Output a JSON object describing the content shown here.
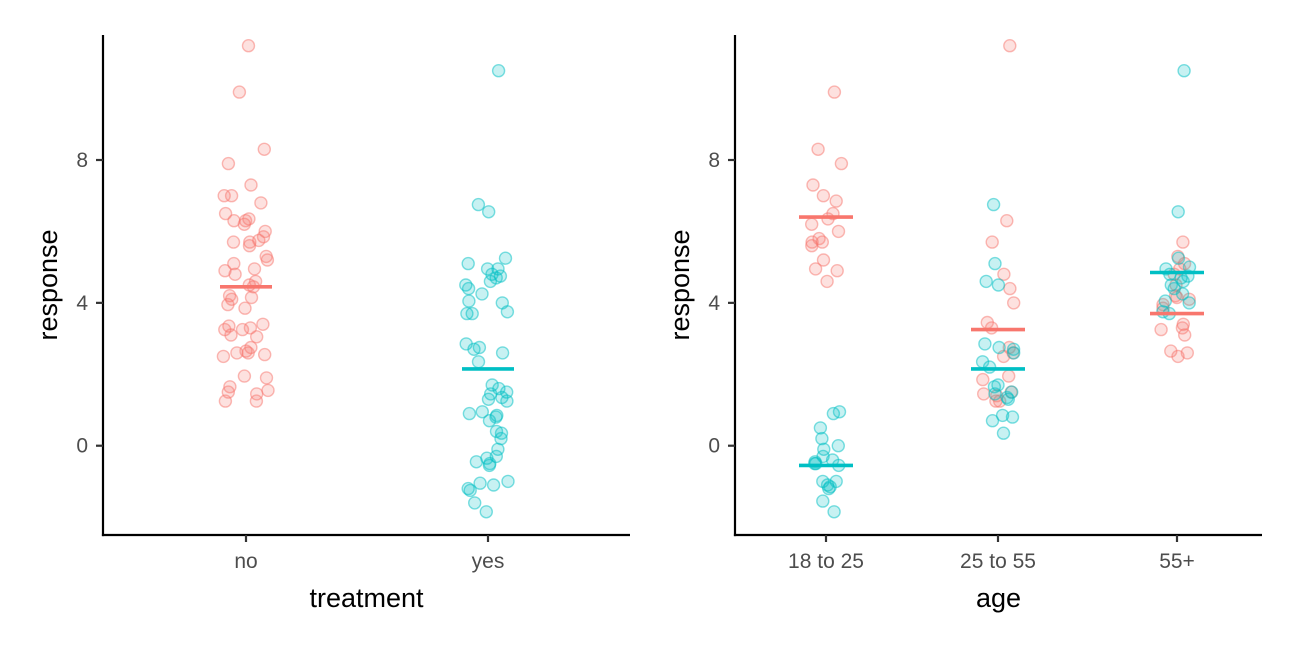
{
  "chart_data": [
    {
      "type": "scatter",
      "subtype": "jitter-strip",
      "xlabel": "treatment",
      "ylabel": "response",
      "categories": [
        "no",
        "yes"
      ],
      "ylim": [
        -2.5,
        11.5
      ],
      "yticks": [
        0,
        4,
        8
      ],
      "grid": false,
      "legend": "none",
      "series": [
        {
          "color": "#F8766D",
          "points": [
            {
              "x": "no",
              "y": 11.2
            },
            {
              "x": "no",
              "y": 9.9
            },
            {
              "x": "no",
              "y": 8.3
            },
            {
              "x": "no",
              "y": 7.9
            },
            {
              "x": "no",
              "y": 7.3
            },
            {
              "x": "no",
              "y": 7.0
            },
            {
              "x": "no",
              "y": 7.0
            },
            {
              "x": "no",
              "y": 6.8
            },
            {
              "x": "no",
              "y": 6.5
            },
            {
              "x": "no",
              "y": 6.35
            },
            {
              "x": "no",
              "y": 6.3
            },
            {
              "x": "no",
              "y": 6.3
            },
            {
              "x": "no",
              "y": 6.2
            },
            {
              "x": "no",
              "y": 6.0
            },
            {
              "x": "no",
              "y": 5.85
            },
            {
              "x": "no",
              "y": 5.75
            },
            {
              "x": "no",
              "y": 5.7
            },
            {
              "x": "no",
              "y": 5.7
            },
            {
              "x": "no",
              "y": 5.6
            },
            {
              "x": "no",
              "y": 5.3
            },
            {
              "x": "no",
              "y": 5.2
            },
            {
              "x": "no",
              "y": 5.1
            },
            {
              "x": "no",
              "y": 4.95
            },
            {
              "x": "no",
              "y": 4.9
            },
            {
              "x": "no",
              "y": 4.8
            },
            {
              "x": "no",
              "y": 4.6
            },
            {
              "x": "no",
              "y": 4.5
            },
            {
              "x": "no",
              "y": 4.45
            },
            {
              "x": "no",
              "y": 4.2
            },
            {
              "x": "no",
              "y": 4.15
            },
            {
              "x": "no",
              "y": 4.1
            },
            {
              "x": "no",
              "y": 3.95
            },
            {
              "x": "no",
              "y": 3.85
            },
            {
              "x": "no",
              "y": 3.4
            },
            {
              "x": "no",
              "y": 3.35
            },
            {
              "x": "no",
              "y": 3.3
            },
            {
              "x": "no",
              "y": 3.25
            },
            {
              "x": "no",
              "y": 3.25
            },
            {
              "x": "no",
              "y": 3.1
            },
            {
              "x": "no",
              "y": 3.05
            },
            {
              "x": "no",
              "y": 2.75
            },
            {
              "x": "no",
              "y": 2.65
            },
            {
              "x": "no",
              "y": 2.6
            },
            {
              "x": "no",
              "y": 2.6
            },
            {
              "x": "no",
              "y": 2.55
            },
            {
              "x": "no",
              "y": 2.5
            },
            {
              "x": "no",
              "y": 1.95
            },
            {
              "x": "no",
              "y": 1.9
            },
            {
              "x": "no",
              "y": 1.65
            },
            {
              "x": "no",
              "y": 1.55
            },
            {
              "x": "no",
              "y": 1.5
            },
            {
              "x": "no",
              "y": 1.45
            },
            {
              "x": "no",
              "y": 1.25
            },
            {
              "x": "no",
              "y": 1.25
            }
          ]
        },
        {
          "color": "#00BFC4",
          "points": [
            {
              "x": "yes",
              "y": 10.5
            },
            {
              "x": "yes",
              "y": 6.75
            },
            {
              "x": "yes",
              "y": 6.55
            },
            {
              "x": "yes",
              "y": 5.25
            },
            {
              "x": "yes",
              "y": 5.1
            },
            {
              "x": "yes",
              "y": 4.95
            },
            {
              "x": "yes",
              "y": 4.95
            },
            {
              "x": "yes",
              "y": 4.8
            },
            {
              "x": "yes",
              "y": 4.75
            },
            {
              "x": "yes",
              "y": 4.7
            },
            {
              "x": "yes",
              "y": 4.6
            },
            {
              "x": "yes",
              "y": 4.5
            },
            {
              "x": "yes",
              "y": 4.4
            },
            {
              "x": "yes",
              "y": 4.25
            },
            {
              "x": "yes",
              "y": 4.05
            },
            {
              "x": "yes",
              "y": 4.0
            },
            {
              "x": "yes",
              "y": 3.75
            },
            {
              "x": "yes",
              "y": 3.7
            },
            {
              "x": "yes",
              "y": 3.7
            },
            {
              "x": "yes",
              "y": 2.85
            },
            {
              "x": "yes",
              "y": 2.75
            },
            {
              "x": "yes",
              "y": 2.7
            },
            {
              "x": "yes",
              "y": 2.6
            },
            {
              "x": "yes",
              "y": 2.35
            },
            {
              "x": "yes",
              "y": 1.7
            },
            {
              "x": "yes",
              "y": 1.6
            },
            {
              "x": "yes",
              "y": 1.5
            },
            {
              "x": "yes",
              "y": 1.45
            },
            {
              "x": "yes",
              "y": 1.35
            },
            {
              "x": "yes",
              "y": 1.3
            },
            {
              "x": "yes",
              "y": 1.25
            },
            {
              "x": "yes",
              "y": 0.95
            },
            {
              "x": "yes",
              "y": 0.9
            },
            {
              "x": "yes",
              "y": 0.85
            },
            {
              "x": "yes",
              "y": 0.8
            },
            {
              "x": "yes",
              "y": 0.7
            },
            {
              "x": "yes",
              "y": 0.4
            },
            {
              "x": "yes",
              "y": 0.35
            },
            {
              "x": "yes",
              "y": 0.2
            },
            {
              "x": "yes",
              "y": -0.1
            },
            {
              "x": "yes",
              "y": -0.3
            },
            {
              "x": "yes",
              "y": -0.35
            },
            {
              "x": "yes",
              "y": -0.45
            },
            {
              "x": "yes",
              "y": -0.5
            },
            {
              "x": "yes",
              "y": -0.55
            },
            {
              "x": "yes",
              "y": -1.0
            },
            {
              "x": "yes",
              "y": -1.05
            },
            {
              "x": "yes",
              "y": -1.1
            },
            {
              "x": "yes",
              "y": -1.2
            },
            {
              "x": "yes",
              "y": -1.25
            },
            {
              "x": "yes",
              "y": -1.6
            },
            {
              "x": "yes",
              "y": -1.85
            }
          ]
        }
      ],
      "means": [
        {
          "x": "no",
          "y": 4.45,
          "color": "#F8766D"
        },
        {
          "x": "yes",
          "y": 2.15,
          "color": "#00BFC4"
        }
      ]
    },
    {
      "type": "scatter",
      "subtype": "jitter-strip",
      "xlabel": "age",
      "ylabel": "response",
      "categories": [
        "18 to 25",
        "25 to 55",
        "55+"
      ],
      "ylim": [
        -2.5,
        11.5
      ],
      "yticks": [
        0,
        4,
        8
      ],
      "grid": false,
      "legend": "none",
      "series": [
        {
          "color": "#F8766D",
          "points": [
            {
              "x": "18 to 25",
              "y": 9.9
            },
            {
              "x": "18 to 25",
              "y": 8.3
            },
            {
              "x": "18 to 25",
              "y": 7.9
            },
            {
              "x": "18 to 25",
              "y": 7.3
            },
            {
              "x": "18 to 25",
              "y": 7.0
            },
            {
              "x": "18 to 25",
              "y": 6.85
            },
            {
              "x": "18 to 25",
              "y": 6.5
            },
            {
              "x": "18 to 25",
              "y": 6.35
            },
            {
              "x": "18 to 25",
              "y": 6.2
            },
            {
              "x": "18 to 25",
              "y": 6.0
            },
            {
              "x": "18 to 25",
              "y": 5.8
            },
            {
              "x": "18 to 25",
              "y": 5.7
            },
            {
              "x": "18 to 25",
              "y": 5.7
            },
            {
              "x": "18 to 25",
              "y": 5.6
            },
            {
              "x": "18 to 25",
              "y": 5.2
            },
            {
              "x": "18 to 25",
              "y": 4.95
            },
            {
              "x": "18 to 25",
              "y": 4.9
            },
            {
              "x": "18 to 25",
              "y": 4.6
            },
            {
              "x": "25 to 55",
              "y": 11.2
            },
            {
              "x": "25 to 55",
              "y": 6.3
            },
            {
              "x": "25 to 55",
              "y": 5.7
            },
            {
              "x": "25 to 55",
              "y": 4.8
            },
            {
              "x": "25 to 55",
              "y": 4.4
            },
            {
              "x": "25 to 55",
              "y": 4.0
            },
            {
              "x": "25 to 55",
              "y": 3.45
            },
            {
              "x": "25 to 55",
              "y": 3.3
            },
            {
              "x": "25 to 55",
              "y": 2.75
            },
            {
              "x": "25 to 55",
              "y": 2.6
            },
            {
              "x": "25 to 55",
              "y": 2.5
            },
            {
              "x": "25 to 55",
              "y": 1.95
            },
            {
              "x": "25 to 55",
              "y": 1.85
            },
            {
              "x": "25 to 55",
              "y": 1.5
            },
            {
              "x": "25 to 55",
              "y": 1.45
            },
            {
              "x": "25 to 55",
              "y": 1.4
            },
            {
              "x": "25 to 55",
              "y": 1.25
            },
            {
              "x": "25 to 55",
              "y": 1.25
            },
            {
              "x": "55+",
              "y": 5.7
            },
            {
              "x": "55+",
              "y": 5.3
            },
            {
              "x": "55+",
              "y": 5.1
            },
            {
              "x": "55+",
              "y": 4.95
            },
            {
              "x": "55+",
              "y": 4.8
            },
            {
              "x": "55+",
              "y": 4.5
            },
            {
              "x": "55+",
              "y": 4.2
            },
            {
              "x": "55+",
              "y": 4.15
            },
            {
              "x": "55+",
              "y": 4.1
            },
            {
              "x": "55+",
              "y": 3.95
            },
            {
              "x": "55+",
              "y": 3.85
            },
            {
              "x": "55+",
              "y": 3.4
            },
            {
              "x": "55+",
              "y": 3.3
            },
            {
              "x": "55+",
              "y": 3.25
            },
            {
              "x": "55+",
              "y": 3.1
            },
            {
              "x": "55+",
              "y": 2.65
            },
            {
              "x": "55+",
              "y": 2.6
            },
            {
              "x": "55+",
              "y": 2.5
            }
          ]
        },
        {
          "color": "#00BFC4",
          "points": [
            {
              "x": "18 to 25",
              "y": 0.95
            },
            {
              "x": "18 to 25",
              "y": 0.9
            },
            {
              "x": "18 to 25",
              "y": 0.5
            },
            {
              "x": "18 to 25",
              "y": 0.2
            },
            {
              "x": "18 to 25",
              "y": 0.0
            },
            {
              "x": "18 to 25",
              "y": -0.1
            },
            {
              "x": "18 to 25",
              "y": -0.3
            },
            {
              "x": "18 to 25",
              "y": -0.4
            },
            {
              "x": "18 to 25",
              "y": -0.45
            },
            {
              "x": "18 to 25",
              "y": -0.5
            },
            {
              "x": "18 to 25",
              "y": -0.5
            },
            {
              "x": "18 to 25",
              "y": -0.55
            },
            {
              "x": "18 to 25",
              "y": -1.0
            },
            {
              "x": "18 to 25",
              "y": -1.0
            },
            {
              "x": "18 to 25",
              "y": -1.1
            },
            {
              "x": "18 to 25",
              "y": -1.15
            },
            {
              "x": "18 to 25",
              "y": -1.2
            },
            {
              "x": "18 to 25",
              "y": -1.55
            },
            {
              "x": "18 to 25",
              "y": -1.85
            },
            {
              "x": "25 to 55",
              "y": 6.75
            },
            {
              "x": "25 to 55",
              "y": 5.1
            },
            {
              "x": "25 to 55",
              "y": 4.6
            },
            {
              "x": "25 to 55",
              "y": 4.5
            },
            {
              "x": "25 to 55",
              "y": 2.85
            },
            {
              "x": "25 to 55",
              "y": 2.75
            },
            {
              "x": "25 to 55",
              "y": 2.7
            },
            {
              "x": "25 to 55",
              "y": 2.6
            },
            {
              "x": "25 to 55",
              "y": 2.35
            },
            {
              "x": "25 to 55",
              "y": 2.2
            },
            {
              "x": "25 to 55",
              "y": 1.7
            },
            {
              "x": "25 to 55",
              "y": 1.65
            },
            {
              "x": "25 to 55",
              "y": 1.5
            },
            {
              "x": "25 to 55",
              "y": 1.45
            },
            {
              "x": "25 to 55",
              "y": 1.35
            },
            {
              "x": "25 to 55",
              "y": 1.3
            },
            {
              "x": "25 to 55",
              "y": 0.85
            },
            {
              "x": "25 to 55",
              "y": 0.8
            },
            {
              "x": "25 to 55",
              "y": 0.7
            },
            {
              "x": "25 to 55",
              "y": 0.35
            },
            {
              "x": "55+",
              "y": 10.5
            },
            {
              "x": "55+",
              "y": 6.55
            },
            {
              "x": "55+",
              "y": 5.25
            },
            {
              "x": "55+",
              "y": 5.0
            },
            {
              "x": "55+",
              "y": 4.95
            },
            {
              "x": "55+",
              "y": 4.8
            },
            {
              "x": "55+",
              "y": 4.75
            },
            {
              "x": "55+",
              "y": 4.7
            },
            {
              "x": "55+",
              "y": 4.6
            },
            {
              "x": "55+",
              "y": 4.5
            },
            {
              "x": "55+",
              "y": 4.4
            },
            {
              "x": "55+",
              "y": 4.25
            },
            {
              "x": "55+",
              "y": 4.05
            },
            {
              "x": "55+",
              "y": 4.0
            },
            {
              "x": "55+",
              "y": 3.75
            },
            {
              "x": "55+",
              "y": 3.7
            }
          ]
        }
      ],
      "means": [
        {
          "x": "18 to 25",
          "y": 6.4,
          "color": "#F8766D"
        },
        {
          "x": "18 to 25",
          "y": -0.55,
          "color": "#00BFC4"
        },
        {
          "x": "25 to 55",
          "y": 3.25,
          "color": "#F8766D"
        },
        {
          "x": "25 to 55",
          "y": 2.15,
          "color": "#00BFC4"
        },
        {
          "x": "55+",
          "y": 4.85,
          "color": "#00BFC4"
        },
        {
          "x": "55+",
          "y": 3.7,
          "color": "#F8766D"
        }
      ]
    }
  ]
}
